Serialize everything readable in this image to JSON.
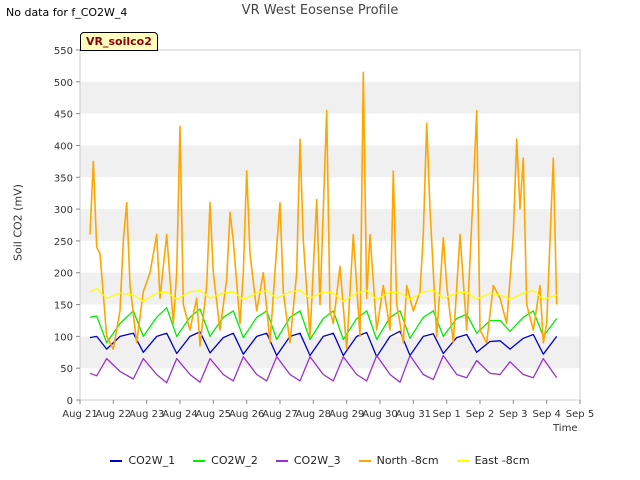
{
  "nodata_text": "No data for f_CO2W_4",
  "badge": "VR_soilco2",
  "chart_data": {
    "type": "line",
    "title": "VR West Eosense Profile",
    "xlabel": "Time",
    "ylabel": "Soil CO2 (mV)",
    "ylim": [
      0,
      550
    ],
    "yticks": [
      0,
      50,
      100,
      150,
      200,
      250,
      300,
      350,
      400,
      450,
      500,
      550
    ],
    "xticks": [
      "Aug 21",
      "Aug 22",
      "Aug 23",
      "Aug 24",
      "Aug 25",
      "Aug 26",
      "Aug 27",
      "Aug 28",
      "Aug 29",
      "Aug 30",
      "Aug 31",
      "Sep 1",
      "Sep 2",
      "Sep 3",
      "Sep 4",
      "Sep 5"
    ],
    "xlim_days": [
      0,
      15
    ],
    "grid": "horizontal bands",
    "legend_position": "bottom",
    "series": [
      {
        "name": "CO2W_1",
        "color": "#0000cc",
        "values": [
          [
            0.3,
            98
          ],
          [
            0.5,
            100
          ],
          [
            0.8,
            80
          ],
          [
            1.2,
            100
          ],
          [
            1.6,
            105
          ],
          [
            1.9,
            75
          ],
          [
            2.3,
            100
          ],
          [
            2.6,
            105
          ],
          [
            2.9,
            73
          ],
          [
            3.3,
            100
          ],
          [
            3.6,
            107
          ],
          [
            3.9,
            74
          ],
          [
            4.3,
            98
          ],
          [
            4.6,
            105
          ],
          [
            4.9,
            72
          ],
          [
            5.3,
            100
          ],
          [
            5.6,
            105
          ],
          [
            5.9,
            70
          ],
          [
            6.3,
            100
          ],
          [
            6.6,
            105
          ],
          [
            6.9,
            70
          ],
          [
            7.3,
            100
          ],
          [
            7.6,
            105
          ],
          [
            7.9,
            70
          ],
          [
            8.3,
            100
          ],
          [
            8.6,
            106
          ],
          [
            8.9,
            68
          ],
          [
            9.3,
            100
          ],
          [
            9.6,
            108
          ],
          [
            9.9,
            70
          ],
          [
            10.3,
            100
          ],
          [
            10.6,
            104
          ],
          [
            10.9,
            73
          ],
          [
            11.3,
            98
          ],
          [
            11.6,
            103
          ],
          [
            11.9,
            75
          ],
          [
            12.3,
            92
          ],
          [
            12.6,
            93
          ],
          [
            12.9,
            80
          ],
          [
            13.3,
            97
          ],
          [
            13.6,
            103
          ],
          [
            13.9,
            72
          ],
          [
            14.3,
            100
          ]
        ]
      },
      {
        "name": "CO2W_2",
        "color": "#00ee00",
        "values": [
          [
            0.3,
            130
          ],
          [
            0.5,
            132
          ],
          [
            0.8,
            90
          ],
          [
            1.2,
            120
          ],
          [
            1.6,
            140
          ],
          [
            1.9,
            100
          ],
          [
            2.3,
            130
          ],
          [
            2.6,
            145
          ],
          [
            2.9,
            100
          ],
          [
            3.3,
            130
          ],
          [
            3.6,
            143
          ],
          [
            3.9,
            100
          ],
          [
            4.3,
            130
          ],
          [
            4.6,
            140
          ],
          [
            4.9,
            98
          ],
          [
            5.3,
            130
          ],
          [
            5.6,
            140
          ],
          [
            5.9,
            95
          ],
          [
            6.3,
            130
          ],
          [
            6.6,
            140
          ],
          [
            6.9,
            95
          ],
          [
            7.3,
            128
          ],
          [
            7.6,
            140
          ],
          [
            7.9,
            95
          ],
          [
            8.3,
            128
          ],
          [
            8.6,
            140
          ],
          [
            8.9,
            95
          ],
          [
            9.3,
            130
          ],
          [
            9.6,
            140
          ],
          [
            9.9,
            97
          ],
          [
            10.3,
            130
          ],
          [
            10.6,
            140
          ],
          [
            10.9,
            100
          ],
          [
            11.3,
            128
          ],
          [
            11.6,
            135
          ],
          [
            11.9,
            105
          ],
          [
            12.3,
            125
          ],
          [
            12.6,
            125
          ],
          [
            12.9,
            108
          ],
          [
            13.3,
            130
          ],
          [
            13.6,
            140
          ],
          [
            13.9,
            100
          ],
          [
            14.3,
            128
          ]
        ]
      },
      {
        "name": "CO2W_3",
        "color": "#9933cc",
        "values": [
          [
            0.3,
            42
          ],
          [
            0.5,
            38
          ],
          [
            0.8,
            65
          ],
          [
            1.2,
            45
          ],
          [
            1.6,
            33
          ],
          [
            1.9,
            65
          ],
          [
            2.3,
            40
          ],
          [
            2.6,
            27
          ],
          [
            2.9,
            65
          ],
          [
            3.3,
            40
          ],
          [
            3.6,
            28
          ],
          [
            3.9,
            65
          ],
          [
            4.3,
            40
          ],
          [
            4.6,
            30
          ],
          [
            4.9,
            68
          ],
          [
            5.3,
            40
          ],
          [
            5.6,
            30
          ],
          [
            5.9,
            68
          ],
          [
            6.3,
            40
          ],
          [
            6.6,
            30
          ],
          [
            6.9,
            68
          ],
          [
            7.3,
            40
          ],
          [
            7.6,
            30
          ],
          [
            7.9,
            68
          ],
          [
            8.3,
            40
          ],
          [
            8.6,
            30
          ],
          [
            8.9,
            70
          ],
          [
            9.3,
            40
          ],
          [
            9.6,
            28
          ],
          [
            9.9,
            70
          ],
          [
            10.3,
            40
          ],
          [
            10.6,
            32
          ],
          [
            10.9,
            70
          ],
          [
            11.3,
            40
          ],
          [
            11.6,
            35
          ],
          [
            11.9,
            62
          ],
          [
            12.3,
            42
          ],
          [
            12.6,
            40
          ],
          [
            12.9,
            60
          ],
          [
            13.3,
            40
          ],
          [
            13.6,
            35
          ],
          [
            13.9,
            65
          ],
          [
            14.3,
            35
          ]
        ]
      },
      {
        "name": "North -8cm",
        "color": "#ffa500",
        "values": [
          [
            0.3,
            260
          ],
          [
            0.4,
            375
          ],
          [
            0.5,
            240
          ],
          [
            0.6,
            230
          ],
          [
            0.8,
            100
          ],
          [
            1.0,
            80
          ],
          [
            1.2,
            140
          ],
          [
            1.3,
            250
          ],
          [
            1.4,
            310
          ],
          [
            1.5,
            180
          ],
          [
            1.7,
            90
          ],
          [
            1.9,
            170
          ],
          [
            2.1,
            200
          ],
          [
            2.3,
            260
          ],
          [
            2.4,
            160
          ],
          [
            2.6,
            260
          ],
          [
            2.8,
            120
          ],
          [
            2.9,
            200
          ],
          [
            3.0,
            430
          ],
          [
            3.1,
            150
          ],
          [
            3.3,
            110
          ],
          [
            3.5,
            160
          ],
          [
            3.6,
            85
          ],
          [
            3.8,
            180
          ],
          [
            3.9,
            310
          ],
          [
            4.0,
            200
          ],
          [
            4.2,
            110
          ],
          [
            4.4,
            190
          ],
          [
            4.5,
            295
          ],
          [
            4.6,
            250
          ],
          [
            4.8,
            120
          ],
          [
            4.9,
            200
          ],
          [
            5.0,
            360
          ],
          [
            5.1,
            230
          ],
          [
            5.3,
            140
          ],
          [
            5.5,
            200
          ],
          [
            5.7,
            90
          ],
          [
            5.9,
            240
          ],
          [
            6.0,
            310
          ],
          [
            6.1,
            170
          ],
          [
            6.3,
            90
          ],
          [
            6.5,
            200
          ],
          [
            6.6,
            410
          ],
          [
            6.7,
            250
          ],
          [
            6.9,
            100
          ],
          [
            7.1,
            315
          ],
          [
            7.2,
            150
          ],
          [
            7.4,
            455
          ],
          [
            7.5,
            140
          ],
          [
            7.6,
            120
          ],
          [
            7.8,
            210
          ],
          [
            8.0,
            80
          ],
          [
            8.2,
            260
          ],
          [
            8.4,
            100
          ],
          [
            8.5,
            515
          ],
          [
            8.6,
            160
          ],
          [
            8.7,
            260
          ],
          [
            8.9,
            110
          ],
          [
            9.1,
            180
          ],
          [
            9.3,
            110
          ],
          [
            9.4,
            360
          ],
          [
            9.5,
            150
          ],
          [
            9.7,
            90
          ],
          [
            9.8,
            180
          ],
          [
            10.0,
            140
          ],
          [
            10.2,
            170
          ],
          [
            10.3,
            260
          ],
          [
            10.4,
            435
          ],
          [
            10.5,
            300
          ],
          [
            10.7,
            100
          ],
          [
            10.9,
            255
          ],
          [
            11.0,
            180
          ],
          [
            11.2,
            90
          ],
          [
            11.4,
            260
          ],
          [
            11.6,
            110
          ],
          [
            11.8,
            330
          ],
          [
            11.9,
            455
          ],
          [
            12.0,
            110
          ],
          [
            12.2,
            90
          ],
          [
            12.4,
            180
          ],
          [
            12.6,
            160
          ],
          [
            12.8,
            120
          ],
          [
            13.0,
            260
          ],
          [
            13.1,
            410
          ],
          [
            13.2,
            300
          ],
          [
            13.3,
            380
          ],
          [
            13.4,
            150
          ],
          [
            13.6,
            110
          ],
          [
            13.8,
            180
          ],
          [
            13.9,
            90
          ],
          [
            14.0,
            120
          ],
          [
            14.2,
            380
          ],
          [
            14.3,
            150
          ]
        ]
      },
      {
        "name": "East -8cm",
        "color": "#ffff00",
        "values": [
          [
            0.3,
            170
          ],
          [
            0.5,
            175
          ],
          [
            0.8,
            160
          ],
          [
            1.2,
            168
          ],
          [
            1.6,
            165
          ],
          [
            1.9,
            155
          ],
          [
            2.3,
            168
          ],
          [
            2.6,
            170
          ],
          [
            2.9,
            158
          ],
          [
            3.3,
            170
          ],
          [
            3.6,
            172
          ],
          [
            3.9,
            160
          ],
          [
            4.3,
            168
          ],
          [
            4.6,
            170
          ],
          [
            4.9,
            158
          ],
          [
            5.3,
            168
          ],
          [
            5.6,
            172
          ],
          [
            5.9,
            160
          ],
          [
            6.3,
            170
          ],
          [
            6.6,
            172
          ],
          [
            6.9,
            160
          ],
          [
            7.3,
            170
          ],
          [
            7.6,
            168
          ],
          [
            7.9,
            155
          ],
          [
            8.3,
            168
          ],
          [
            8.6,
            172
          ],
          [
            8.9,
            158
          ],
          [
            9.3,
            170
          ],
          [
            9.6,
            168
          ],
          [
            9.9,
            158
          ],
          [
            10.3,
            170
          ],
          [
            10.6,
            172
          ],
          [
            10.9,
            160
          ],
          [
            11.3,
            168
          ],
          [
            11.6,
            170
          ],
          [
            11.9,
            158
          ],
          [
            12.3,
            168
          ],
          [
            12.6,
            165
          ],
          [
            12.9,
            158
          ],
          [
            13.3,
            168
          ],
          [
            13.6,
            172
          ],
          [
            13.9,
            158
          ],
          [
            14.3,
            165
          ]
        ]
      }
    ]
  }
}
